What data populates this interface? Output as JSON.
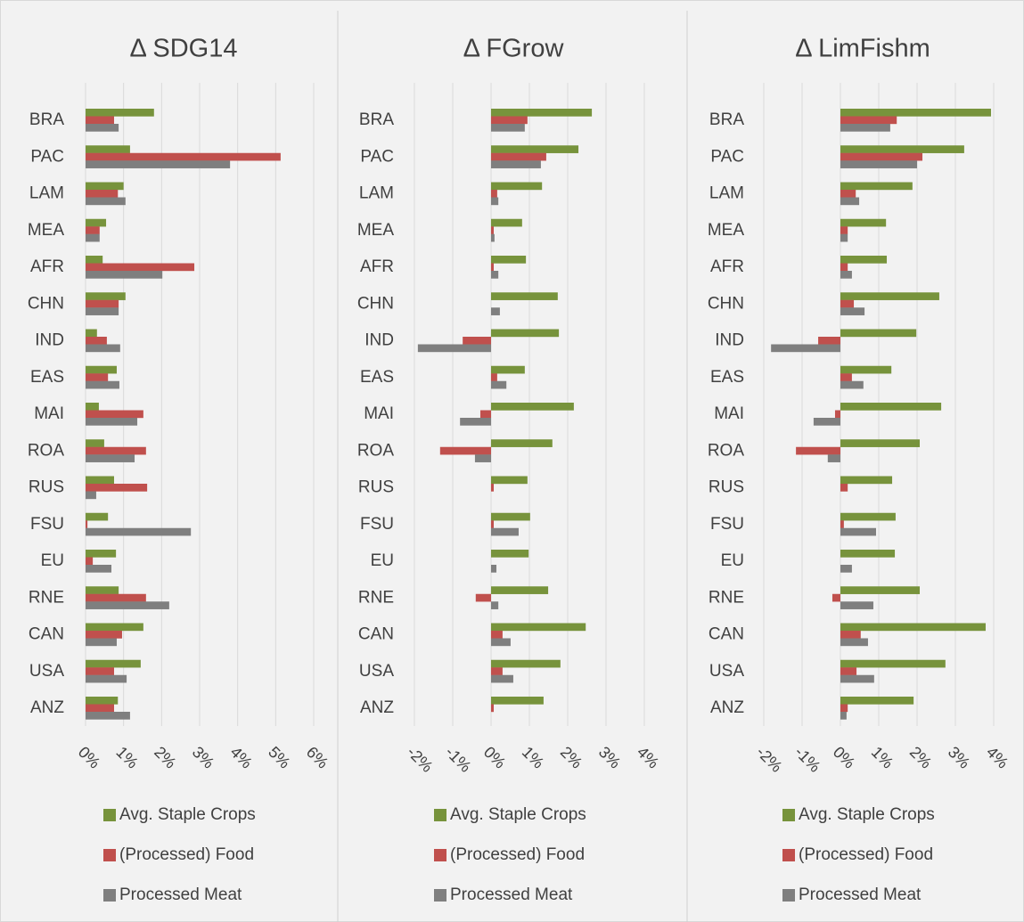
{
  "chart_data": [
    {
      "type": "bar",
      "orientation": "horizontal",
      "title": "Δ SDG14",
      "grid": true,
      "categories": [
        "BRA",
        "PAC",
        "LAM",
        "MEA",
        "AFR",
        "CHN",
        "IND",
        "EAS",
        "MAI",
        "ROA",
        "RUS",
        "FSU",
        "EU",
        "RNE",
        "CAN",
        "USA",
        "ANZ"
      ],
      "xlim": [
        0,
        6
      ],
      "xticks": [
        {
          "value": 0,
          "label": "0%"
        },
        {
          "value": 1,
          "label": "1%"
        },
        {
          "value": 2,
          "label": "2%"
        },
        {
          "value": 3,
          "label": "3%"
        },
        {
          "value": 4,
          "label": "4%"
        },
        {
          "value": 5,
          "label": "5%"
        },
        {
          "value": 6,
          "label": "6%"
        }
      ],
      "series": [
        {
          "name": "Avg. Staple Crops",
          "color": "#77933c",
          "values": [
            1.8,
            1.17,
            1.0,
            0.54,
            0.45,
            1.05,
            0.3,
            0.82,
            0.35,
            0.49,
            0.75,
            0.59,
            0.8,
            0.87,
            1.52,
            1.45,
            0.85
          ]
        },
        {
          "name": "(Processed) Food",
          "color": "#c0504d",
          "values": [
            0.75,
            5.13,
            0.85,
            0.37,
            2.86,
            0.87,
            0.56,
            0.59,
            1.52,
            1.59,
            1.62,
            0.05,
            0.19,
            1.59,
            0.96,
            0.75,
            0.75
          ]
        },
        {
          "name": "Processed Meat",
          "color": "#7f7f7f",
          "values": [
            0.87,
            3.8,
            1.05,
            0.37,
            2.02,
            0.87,
            0.91,
            0.89,
            1.36,
            1.29,
            0.28,
            2.77,
            0.68,
            2.2,
            0.82,
            1.08,
            1.17
          ]
        }
      ]
    },
    {
      "type": "bar",
      "orientation": "horizontal",
      "title": "Δ FGrow",
      "grid": true,
      "categories": [
        "BRA",
        "PAC",
        "LAM",
        "MEA",
        "AFR",
        "CHN",
        "IND",
        "EAS",
        "MAI",
        "ROA",
        "RUS",
        "FSU",
        "EU",
        "RNE",
        "CAN",
        "USA",
        "ANZ"
      ],
      "xlim": [
        -2,
        4
      ],
      "xticks": [
        {
          "value": -2,
          "label": "-2%"
        },
        {
          "value": -1,
          "label": "-1%"
        },
        {
          "value": 0,
          "label": "0%"
        },
        {
          "value": 1,
          "label": "1%"
        },
        {
          "value": 2,
          "label": "2%"
        },
        {
          "value": 3,
          "label": "3%"
        },
        {
          "value": 4,
          "label": "4%"
        }
      ],
      "series": [
        {
          "name": "Avg. Staple Crops",
          "color": "#77933c",
          "values": [
            2.63,
            2.28,
            1.33,
            0.81,
            0.91,
            1.74,
            1.77,
            0.88,
            2.16,
            1.6,
            0.95,
            1.02,
            0.98,
            1.49,
            2.47,
            1.81,
            1.37
          ]
        },
        {
          "name": "(Processed) Food",
          "color": "#c0504d",
          "values": [
            0.95,
            1.44,
            0.16,
            0.07,
            0.07,
            0,
            -0.74,
            0.16,
            -0.28,
            -1.33,
            0.07,
            0.07,
            0,
            -0.4,
            0.3,
            0.3,
            0.07
          ]
        },
        {
          "name": "Processed Meat",
          "color": "#7f7f7f",
          "values": [
            0.88,
            1.3,
            0.19,
            0.09,
            0.19,
            0.23,
            -1.91,
            0.4,
            -0.81,
            -0.42,
            0,
            0.72,
            0.14,
            0.19,
            0.51,
            0.58,
            0
          ]
        }
      ]
    },
    {
      "type": "bar",
      "orientation": "horizontal",
      "title": "Δ LimFishm",
      "grid": true,
      "categories": [
        "BRA",
        "PAC",
        "LAM",
        "MEA",
        "AFR",
        "CHN",
        "IND",
        "EAS",
        "MAI",
        "ROA",
        "RUS",
        "FSU",
        "EU",
        "RNE",
        "CAN",
        "USA",
        "ANZ"
      ],
      "xlim": [
        -2,
        4
      ],
      "xticks": [
        {
          "value": -2,
          "label": "-2%"
        },
        {
          "value": -1,
          "label": "-1%"
        },
        {
          "value": 0,
          "label": "0%"
        },
        {
          "value": 1,
          "label": "1%"
        },
        {
          "value": 2,
          "label": "2%"
        },
        {
          "value": 3,
          "label": "3%"
        },
        {
          "value": 4,
          "label": "4%"
        }
      ],
      "series": [
        {
          "name": "Avg. Staple Crops",
          "color": "#77933c",
          "values": [
            3.93,
            3.23,
            1.88,
            1.19,
            1.21,
            2.58,
            1.98,
            1.33,
            2.63,
            2.07,
            1.35,
            1.44,
            1.42,
            2.07,
            3.79,
            2.74,
            1.91
          ]
        },
        {
          "name": "(Processed) Food",
          "color": "#c0504d",
          "values": [
            1.47,
            2.14,
            0.4,
            0.19,
            0.19,
            0.35,
            -0.58,
            0.3,
            -0.14,
            -1.16,
            0.19,
            0.09,
            0,
            -0.21,
            0.53,
            0.42,
            0.19
          ]
        },
        {
          "name": "Processed Meat",
          "color": "#7f7f7f",
          "values": [
            1.3,
            2.0,
            0.49,
            0.19,
            0.3,
            0.63,
            -1.81,
            0.6,
            -0.7,
            -0.33,
            0,
            0.93,
            0.3,
            0.86,
            0.72,
            0.88,
            0.16
          ]
        }
      ]
    }
  ]
}
